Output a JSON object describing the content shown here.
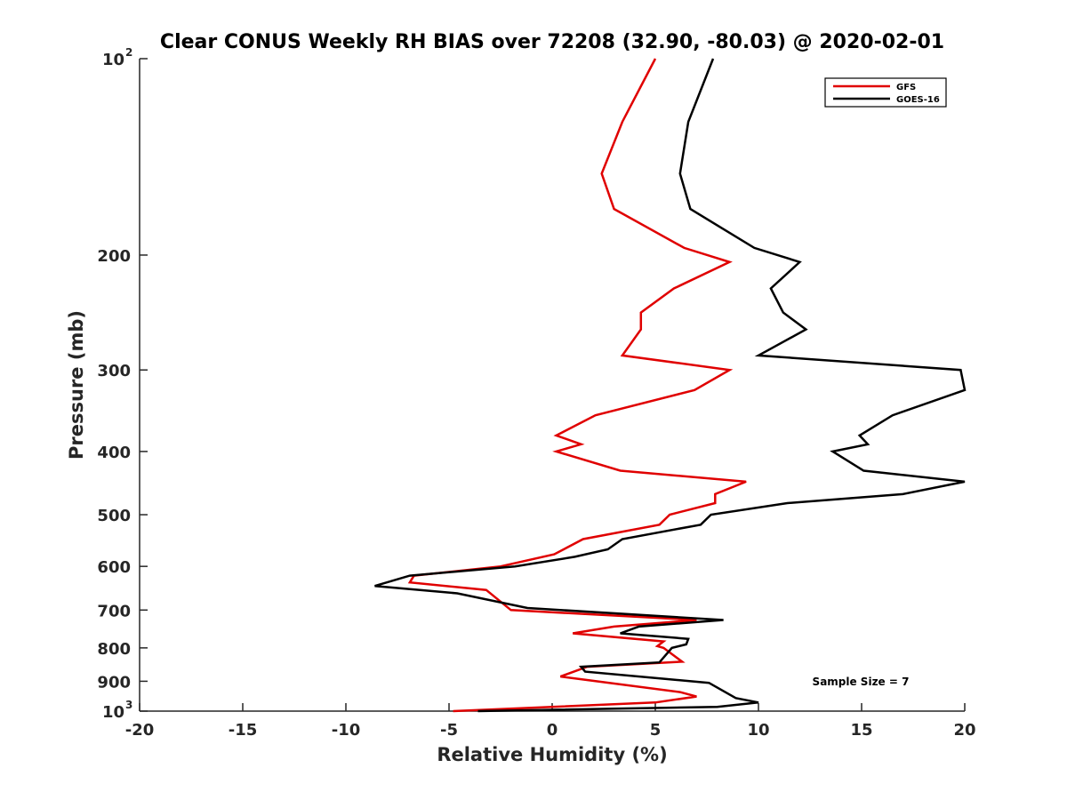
{
  "chart_data": {
    "type": "line",
    "title": "Clear CONUS Weekly RH BIAS over 72208 (32.90, -80.03) @ 2020-02-01",
    "xlabel": "Relative Humidity (%)",
    "ylabel": "Pressure (mb)",
    "xlim": [
      -20,
      20
    ],
    "ylim": [
      100,
      1000
    ],
    "y_scale": "log",
    "y_reversed": true,
    "x_ticks": [
      -20,
      -15,
      -10,
      -5,
      0,
      5,
      10,
      15,
      20
    ],
    "x_tick_labels": [
      "-20",
      "-15",
      "-10",
      "-5",
      "0",
      "5",
      "10",
      "15",
      "20"
    ],
    "y_ticks": [
      {
        "value": 100,
        "label": "10",
        "exp": "2"
      },
      {
        "value": 200,
        "label": "200",
        "exp": ""
      },
      {
        "value": 300,
        "label": "300",
        "exp": ""
      },
      {
        "value": 400,
        "label": "400",
        "exp": ""
      },
      {
        "value": 500,
        "label": "500",
        "exp": ""
      },
      {
        "value": 600,
        "label": "600",
        "exp": ""
      },
      {
        "value": 700,
        "label": "700",
        "exp": ""
      },
      {
        "value": 800,
        "label": "800",
        "exp": ""
      },
      {
        "value": 900,
        "label": "900",
        "exp": ""
      },
      {
        "value": 1000,
        "label": "10",
        "exp": "3"
      }
    ],
    "grid": false,
    "legend_position": "top-right",
    "annotation": "Sample Size = 7",
    "series": [
      {
        "name": "GFS",
        "color": "#e00000",
        "points": [
          [
            5.0,
            100
          ],
          [
            3.4,
            125
          ],
          [
            2.4,
            150
          ],
          [
            3.0,
            170
          ],
          [
            6.4,
            195
          ],
          [
            8.6,
            205
          ],
          [
            5.9,
            225
          ],
          [
            4.3,
            245
          ],
          [
            4.3,
            260
          ],
          [
            3.4,
            285
          ],
          [
            8.6,
            300
          ],
          [
            6.9,
            322
          ],
          [
            2.1,
            352
          ],
          [
            0.2,
            378
          ],
          [
            1.4,
            390
          ],
          [
            0.2,
            400
          ],
          [
            3.3,
            428
          ],
          [
            9.4,
            445
          ],
          [
            7.9,
            465
          ],
          [
            7.9,
            480
          ],
          [
            5.7,
            500
          ],
          [
            5.2,
            518
          ],
          [
            1.5,
            545
          ],
          [
            0.1,
            575
          ],
          [
            -2.5,
            600
          ],
          [
            -6.7,
            620
          ],
          [
            -6.9,
            635
          ],
          [
            -3.2,
            652
          ],
          [
            -2.0,
            700
          ],
          [
            7.0,
            725
          ],
          [
            3.0,
            742
          ],
          [
            1.0,
            760
          ],
          [
            5.4,
            782
          ],
          [
            5.1,
            795
          ],
          [
            5.4,
            800
          ],
          [
            6.3,
            840
          ],
          [
            1.7,
            855
          ],
          [
            0.4,
            885
          ],
          [
            6.2,
            935
          ],
          [
            7.0,
            950
          ],
          [
            5.0,
            970
          ],
          [
            0.0,
            985
          ],
          [
            -4.8,
            1000
          ]
        ]
      },
      {
        "name": "GOES-16",
        "color": "#000000",
        "points": [
          [
            7.8,
            100
          ],
          [
            6.6,
            125
          ],
          [
            6.2,
            150
          ],
          [
            6.7,
            170
          ],
          [
            9.8,
            195
          ],
          [
            12.0,
            205
          ],
          [
            10.6,
            225
          ],
          [
            11.2,
            245
          ],
          [
            12.3,
            260
          ],
          [
            10.0,
            285
          ],
          [
            19.8,
            300
          ],
          [
            20.0,
            322
          ],
          [
            16.5,
            352
          ],
          [
            14.9,
            378
          ],
          [
            15.3,
            390
          ],
          [
            13.6,
            400
          ],
          [
            15.1,
            428
          ],
          [
            20.0,
            445
          ],
          [
            17.0,
            465
          ],
          [
            11.4,
            480
          ],
          [
            7.7,
            500
          ],
          [
            7.2,
            518
          ],
          [
            3.4,
            545
          ],
          [
            2.7,
            565
          ],
          [
            1.1,
            580
          ],
          [
            -1.8,
            600
          ],
          [
            -6.9,
            620
          ],
          [
            -8.6,
            643
          ],
          [
            -4.6,
            660
          ],
          [
            -1.2,
            695
          ],
          [
            8.3,
            725
          ],
          [
            4.2,
            742
          ],
          [
            3.3,
            760
          ],
          [
            6.6,
            775
          ],
          [
            6.5,
            790
          ],
          [
            5.8,
            800
          ],
          [
            5.2,
            842
          ],
          [
            1.4,
            855
          ],
          [
            1.6,
            870
          ],
          [
            7.6,
            905
          ],
          [
            8.9,
            955
          ],
          [
            10.0,
            970
          ],
          [
            8.0,
            985
          ],
          [
            -3.6,
            1000
          ]
        ]
      }
    ]
  }
}
